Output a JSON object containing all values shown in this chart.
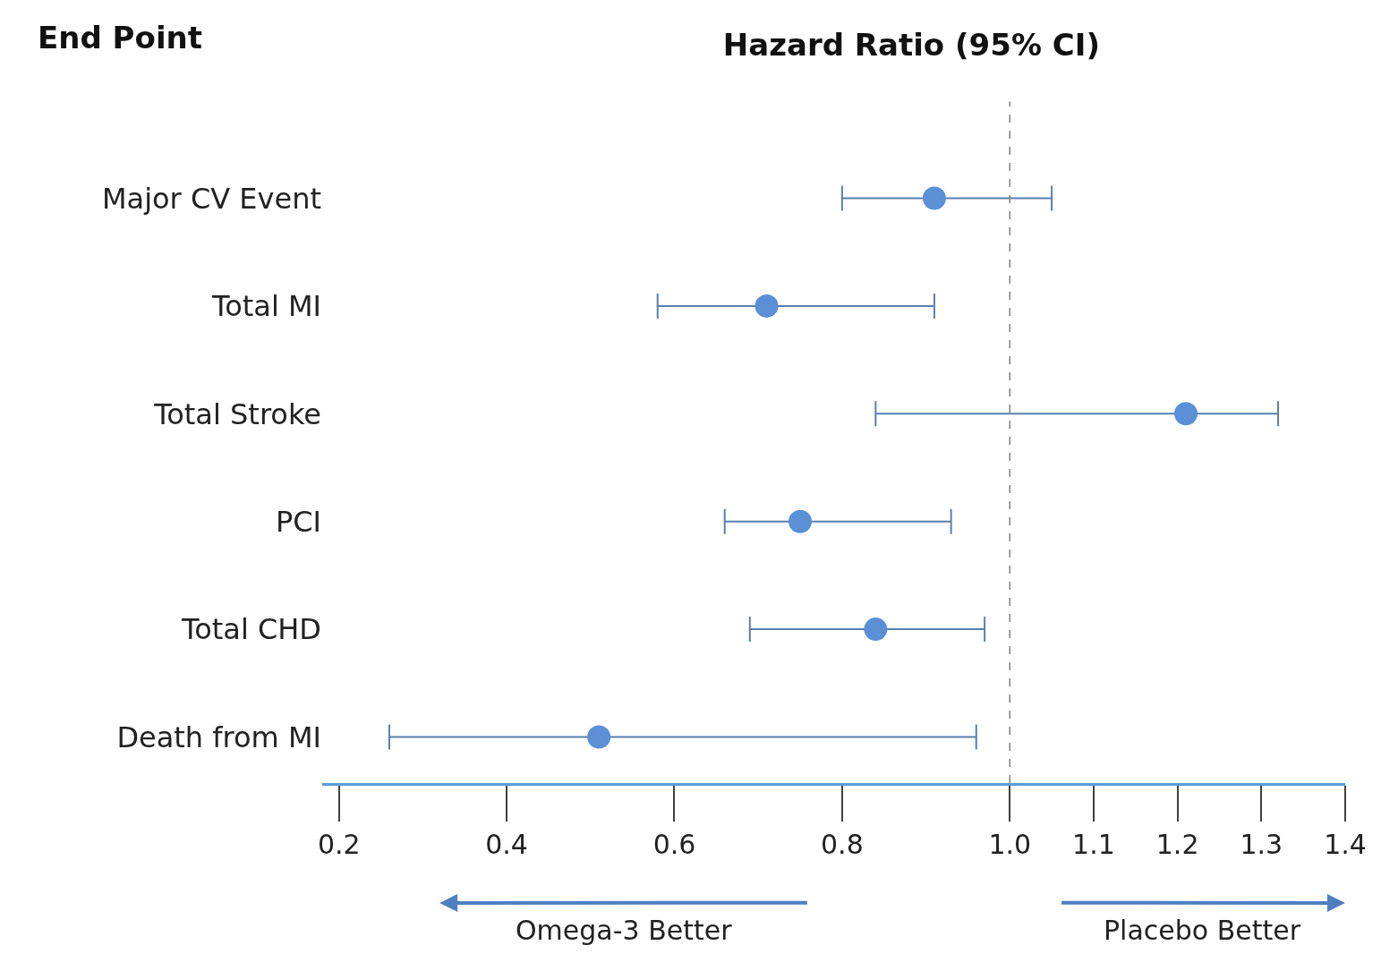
{
  "chart_data": {
    "type": "scatter",
    "title": "Hazard Ratio (95% CI)",
    "annotations": [
      "End Point",
      "Omega-3 Better",
      "Placebo Better"
    ],
    "categories": [
      "Major CV Event",
      "Total MI",
      "Total Stroke",
      "PCI",
      "Total CHD",
      "Death from MI"
    ],
    "series": [
      {
        "color": "#5b8fd6",
        "values": [
          0.91,
          0.71,
          1.21,
          0.75,
          0.84,
          0.51
        ],
        "errors": [
          [
            0.8,
            1.05
          ],
          [
            0.58,
            0.91
          ],
          [
            0.84,
            1.32
          ],
          [
            0.66,
            0.93
          ],
          [
            0.69,
            0.97
          ],
          [
            0.26,
            0.96
          ]
        ]
      }
    ],
    "xlim": [
      0.18,
      1.4
    ],
    "xticks": [
      0.2,
      0.4,
      0.6,
      0.8,
      {
        "value": 1,
        "label": "1.0"
      },
      1.1,
      1.2,
      1.3,
      1.4
    ],
    "ref_lines": [
      {
        "axis": "x",
        "value": 1,
        "color": "#808080",
        "line_style": "dashed"
      }
    ],
    "marker": "circle",
    "orientation": "horizontal"
  }
}
